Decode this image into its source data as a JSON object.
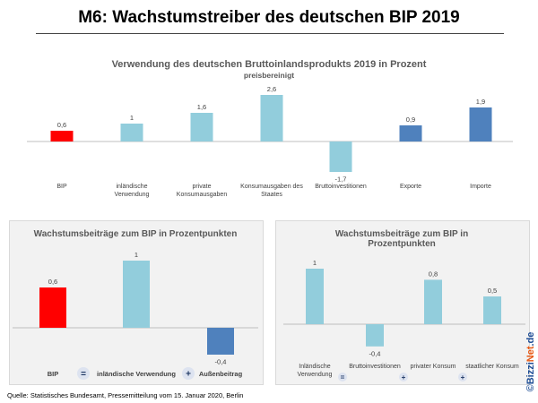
{
  "page": {
    "title": "M6: Wachstumstreiber des deutschen BIP 2019",
    "source": "Quelle:  Statistisches Bundesamt,  Pressemitteilung vom 15. Januar 2020, Berlin",
    "brand_prefix": "©Bizzi",
    "brand_highlight": "Net",
    "brand_suffix": ".de"
  },
  "chart_data": [
    {
      "type": "bar",
      "title": "Verwendung des deutschen Bruttoinlandsprodukts 2019 in Prozent",
      "subtitle": "preisbereinigt",
      "categories": [
        [
          "BIP"
        ],
        [
          "inländische",
          "Verwendung"
        ],
        [
          "private",
          "Konsumausgaben"
        ],
        [
          "Konsumausgaben des",
          "Staates"
        ],
        [
          "Bruttoinvestitionen"
        ],
        [
          "Exporte"
        ],
        [
          "Importe"
        ]
      ],
      "values": [
        0.6,
        1,
        1.6,
        2.6,
        -1.7,
        0.9,
        1.9
      ],
      "value_labels": [
        "0,6",
        "1",
        "1,6",
        "2,6",
        "-1,7",
        "0,9",
        "1,9"
      ],
      "colors": [
        "#ff0000",
        "#92cddc",
        "#92cddc",
        "#92cddc",
        "#92cddc",
        "#4f81bd",
        "#4f81bd"
      ]
    },
    {
      "type": "bar",
      "title": "Wachstumsbeiträge zum BIP in Prozentpunkten",
      "categories": [
        [
          "BIP"
        ],
        [
          "inländische Verwendung"
        ],
        [
          "Außenbeitrag"
        ]
      ],
      "values": [
        0.6,
        1,
        -0.4
      ],
      "value_labels": [
        "0,6",
        "1",
        "-0,4"
      ],
      "colors": [
        "#ff0000",
        "#92cddc",
        "#4f81bd"
      ],
      "operators": [
        "=",
        "+"
      ]
    },
    {
      "type": "bar",
      "title": [
        "Wachstumsbeiträge zum BIP in",
        "Prozentpunkten"
      ],
      "categories": [
        [
          "Inländische",
          "Verwendung"
        ],
        [
          "Bruttoinvestitionen"
        ],
        [
          "privater Konsum"
        ],
        [
          "staatlicher Konsum"
        ]
      ],
      "values": [
        1,
        -0.4,
        0.8,
        0.5
      ],
      "value_labels": [
        "1",
        "-0,4",
        "0,8",
        "0,5"
      ],
      "colors": [
        "#92cddc",
        "#92cddc",
        "#92cddc",
        "#92cddc"
      ],
      "operators": [
        "=",
        "+",
        "+"
      ]
    }
  ]
}
